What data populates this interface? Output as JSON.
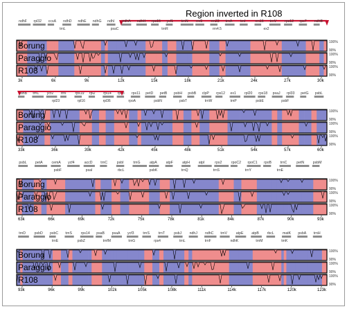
{
  "title": "Region inverted in R108",
  "colors": {
    "exon": "#8587cc",
    "noncoding": "#ef8d8d",
    "gene_arrow": "#8e8e8e",
    "annotation_red": "#c8102e",
    "identity_line": "#000000"
  },
  "genomes": [
    "Borung",
    "Paraggio",
    "R108"
  ],
  "identity_ticks": [
    "100%",
    "90%"
  ],
  "panels": [
    {
      "range_kb": [
        0,
        31.5
      ],
      "ticks": [
        "3k",
        "6k",
        "9k",
        "12k",
        "15k",
        "18k",
        "21k",
        "24k",
        "27k",
        "30k"
      ],
      "genes_top": [
        "ndhF",
        "rpl32",
        "ccsA",
        "ndhD",
        "ndhE",
        "ndhG",
        "ndhI",
        "ndhA",
        "ndhH",
        "rps15",
        "ycf1",
        "trnN",
        "rrn5",
        "rrn23",
        "trnA",
        "trnI",
        "rrn16",
        "trnV",
        "rps12",
        "rps7",
        "ndhB"
      ],
      "genes_bottom": [
        "trnL",
        "psaC",
        "trnR",
        "rrn4.5",
        "ex2"
      ]
    },
    {
      "range_kb": [
        31.5,
        63
      ],
      "ticks": [
        "33k",
        "36k",
        "39k",
        "42k",
        "45k",
        "48k",
        "51k",
        "54k",
        "57k",
        "60k"
      ],
      "genes_top": [
        "ndhB",
        "trnL",
        "ycf2",
        "trnI",
        "rps19",
        "rpl2",
        "rpl14",
        "rps8",
        "rps11",
        "petD",
        "petB",
        "psbH",
        "psbB",
        "clpP",
        "rps12",
        "ex1",
        "rpl20",
        "rps18",
        "psaJ",
        "rpl33",
        "petG",
        "psbL"
      ],
      "genes_bottom": [
        "rpl23",
        "rpl16",
        "rpl36",
        "rpoA",
        "psbN",
        "psbT",
        "trnW",
        "trnP",
        "psbE",
        "psbF"
      ]
    },
    {
      "range_kb": [
        63,
        94
      ],
      "ticks": [
        "63k",
        "66k",
        "69k",
        "72k",
        "75k",
        "78k",
        "81k",
        "84k",
        "87k",
        "90k",
        "93k"
      ],
      "genes_top": [
        "psbL",
        "petA",
        "cemA",
        "ycf4",
        "accD",
        "trnC",
        "psbI",
        "trnG",
        "atpA",
        "atpF",
        "atpH",
        "atpI",
        "rps2",
        "rpoC2",
        "rpoC1",
        "rpoB",
        "trnC",
        "petN",
        "psbM"
      ],
      "genes_bottom": [
        "psbF",
        "psaI",
        "rbcL",
        "psbK",
        "trnQ",
        "trnS",
        "trnY",
        "trnE"
      ]
    },
    {
      "range_kb": [
        94,
        125
      ],
      "ticks": [
        "93k",
        "96k",
        "99k",
        "102k",
        "105k",
        "108k",
        "111k",
        "114k",
        "117k",
        "120k",
        "123k"
      ],
      "genes_top": [
        "trnD",
        "psbD",
        "psbC",
        "trnS",
        "rps14",
        "psaB",
        "psaA",
        "ycf3",
        "trnS",
        "trnT",
        "psbJ",
        "ndhJ",
        "ndhC",
        "trnV",
        "atpE",
        "atpB",
        "rbcL",
        "matK",
        "psbA",
        "trnH"
      ],
      "genes_bottom": [
        "trnE",
        "psbZ",
        "trnfM",
        "trnG",
        "rps4",
        "trnL",
        "trnF",
        "ndhK",
        "trnM",
        "trnK"
      ]
    }
  ]
}
